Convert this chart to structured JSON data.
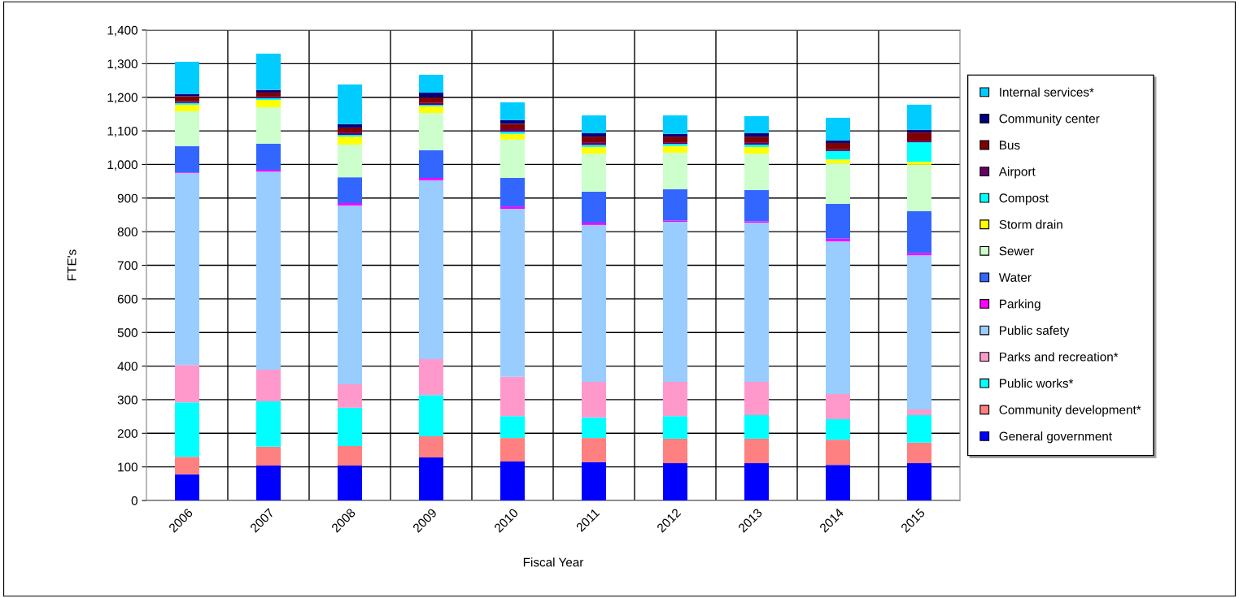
{
  "chart_data": {
    "type": "bar",
    "stacked": true,
    "xlabel": "Fiscal Year",
    "ylabel": "FTE's",
    "categories": [
      "2006",
      "2007",
      "2008",
      "2009",
      "2010",
      "2011",
      "2012",
      "2013",
      "2014",
      "2015"
    ],
    "ylim": [
      0,
      1400
    ],
    "yticks": [
      0,
      100,
      200,
      300,
      400,
      500,
      600,
      700,
      800,
      900,
      {
        "value": 1000,
        "label": "1,000"
      },
      {
        "value": 1100,
        "label": "1,100"
      },
      {
        "value": 1200,
        "label": "1,200"
      },
      {
        "value": 1300,
        "label": "1,300"
      },
      {
        "value": 1400,
        "label": "1,400"
      }
    ],
    "grid": true,
    "legend": "right",
    "series": [
      {
        "name": "General government",
        "color": "#0000ff",
        "values": [
          78,
          104,
          104,
          128,
          116,
          114,
          111,
          111,
          106,
          111
        ]
      },
      {
        "name": "Community development*",
        "color": "#ff8080",
        "values": [
          52,
          56,
          58,
          63,
          70,
          72,
          73,
          73,
          75,
          61
        ]
      },
      {
        "name": "Public works*",
        "color": "#00ffff",
        "values": [
          162,
          135,
          114,
          123,
          65,
          61,
          67,
          70,
          61,
          82
        ]
      },
      {
        "name": "Parks and recreation*",
        "color": "#ff99cc",
        "values": [
          111,
          94,
          70,
          107,
          117,
          106,
          102,
          99,
          75,
          17
        ]
      },
      {
        "name": "Public safety",
        "color": "#99ccff",
        "values": [
          572,
          590,
          532,
          532,
          500,
          467,
          476,
          474,
          454,
          459
        ]
      },
      {
        "name": "Parking",
        "color": "#ff00ff",
        "values": [
          2,
          5,
          7,
          7,
          7,
          7,
          4,
          4,
          8,
          7
        ]
      },
      {
        "name": "Water",
        "color": "#3366ff",
        "values": [
          78,
          78,
          77,
          82,
          85,
          92,
          93,
          93,
          104,
          124
        ]
      },
      {
        "name": "Sewer",
        "color": "#ccffcc",
        "values": [
          103,
          108,
          97,
          111,
          114,
          113,
          109,
          108,
          120,
          138
        ]
      },
      {
        "name": "Storm drain",
        "color": "#ffff00",
        "values": [
          20,
          22,
          24,
          20,
          17,
          20,
          20,
          20,
          12,
          9
        ]
      },
      {
        "name": "Compost",
        "color": "#00ffff",
        "values": [
          5,
          5,
          5,
          4,
          6,
          6,
          6,
          7,
          25,
          58
        ]
      },
      {
        "name": "Airport",
        "color": "#660066",
        "values": [
          5,
          5,
          7,
          6,
          8,
          8,
          5,
          7,
          5,
          5
        ]
      },
      {
        "name": "Bus",
        "color": "#800000",
        "values": [
          15,
          12,
          15,
          17,
          16,
          17,
          17,
          17,
          19,
          24
        ]
      },
      {
        "name": "Community center",
        "color": "#000080",
        "values": [
          7,
          8,
          10,
          14,
          11,
          10,
          8,
          10,
          7,
          8
        ]
      },
      {
        "name": "Internal services*",
        "color": "#00ccff",
        "values": [
          96,
          108,
          118,
          53,
          53,
          53,
          55,
          51,
          68,
          75
        ]
      }
    ]
  }
}
